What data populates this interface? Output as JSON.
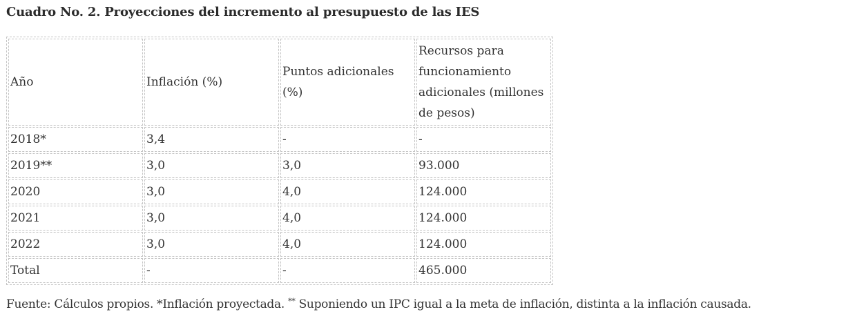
{
  "title": "Cuadro No. 2. Proyecciones del incremento al presupuesto de las IES",
  "table": {
    "headers": [
      "Año",
      "Inflación  (%)",
      "Puntos adicionales (%)",
      "Recursos para funcionamiento adicionales (millones de pesos)"
    ],
    "rows": [
      [
        "2018*",
        "3,4",
        "-",
        "-"
      ],
      [
        "2019**",
        "3,0",
        "3,0",
        "93.000"
      ],
      [
        "2020",
        "3,0",
        "4,0",
        "124.000"
      ],
      [
        "2021",
        "3,0",
        "4,0",
        "124.000"
      ],
      [
        "2022",
        "3,0",
        "4,0",
        "124.000"
      ],
      [
        "Total",
        "-",
        "-",
        "465.000"
      ]
    ]
  },
  "footnote": {
    "part1": "Fuente: Cálculos propios. *Inflación proyectada. ",
    "sup": "**",
    "part2": " Suponiendo un IPC igual a la meta de inflación, distinta a la inflación causada."
  },
  "colors": {
    "text": "#333333",
    "border": "#c4c4c4",
    "background": "#ffffff"
  }
}
